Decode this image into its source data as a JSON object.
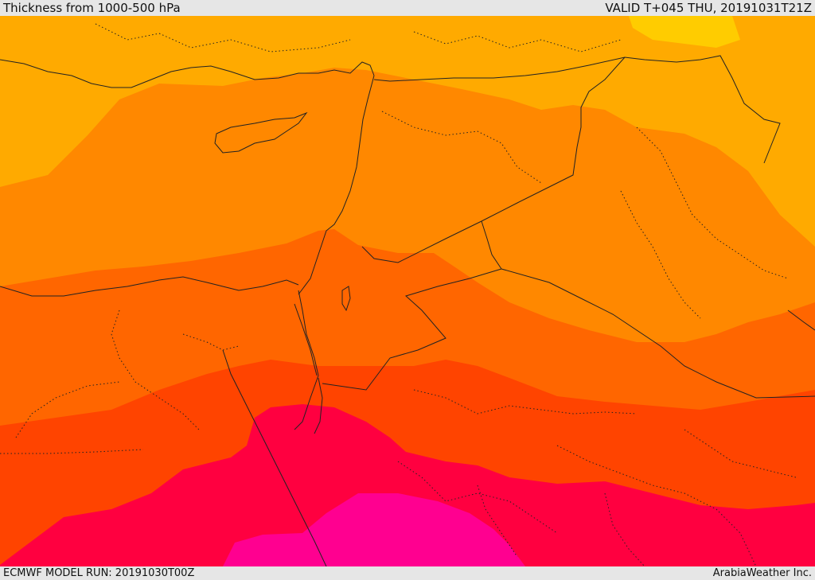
{
  "header": {
    "title": "Thickness from 1000-500 hPa",
    "valid": "VALID T+045 THU, 20191031T21Z"
  },
  "footer": {
    "model_run": "ECMWF MODEL RUN: 20191030T00Z",
    "credit": "ArabiaWeather Inc."
  },
  "map": {
    "bands": [
      {
        "name": "band-yellow",
        "color": "#ffcc00"
      },
      {
        "name": "band-light-orange",
        "color": "#ffaa00"
      },
      {
        "name": "band-orange",
        "color": "#ff8800"
      },
      {
        "name": "band-dark-orange",
        "color": "#ff6600"
      },
      {
        "name": "band-red-orange",
        "color": "#ff4400"
      },
      {
        "name": "band-crimson",
        "color": "#ff0040"
      },
      {
        "name": "band-magenta",
        "color": "#ff0090"
      }
    ],
    "line_color": "#222222"
  }
}
